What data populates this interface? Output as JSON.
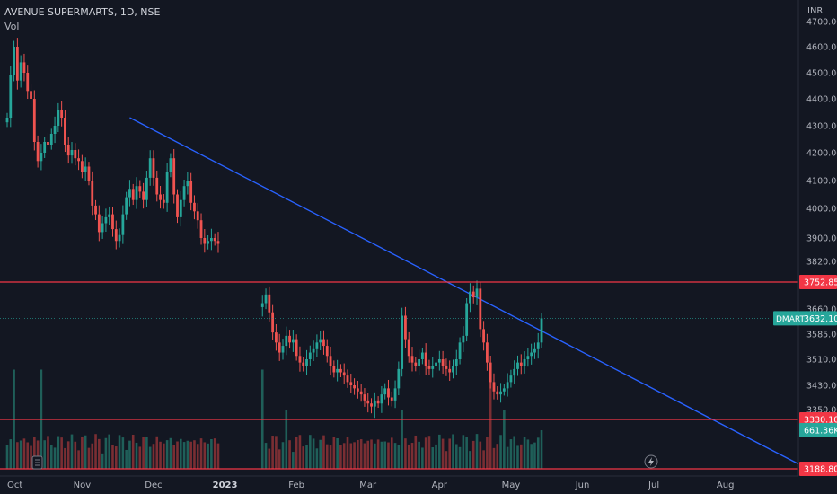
{
  "header": {
    "symbol_line": "AVENUE SUPERMARTS, 1D, NSE",
    "indicator": "Vol"
  },
  "colors": {
    "background": "#131722",
    "up": "#26a69a",
    "down": "#ef5350",
    "up_vol": "#1f5f59",
    "down_vol": "#7a2e33",
    "trendline": "#2962ff",
    "hline": "#f23645",
    "axis_text": "#b2b5be",
    "grid": "#1e222d"
  },
  "chart_data": {
    "type": "candlestick",
    "currency_label": "INR",
    "y_ticks": [
      3188.8,
      3270.0,
      3350.0,
      3430.0,
      3510.0,
      3585.0,
      3660.0,
      3752.85,
      3820.0,
      3900.0,
      4000.0,
      4100.0,
      4200.0,
      4300.0,
      4400.0,
      4500.0,
      4600.0,
      4700.0
    ],
    "y_tick_labels": [
      "",
      "",
      "3350.00",
      "3430.00",
      "3510.00",
      "3585.00",
      "3660.00",
      "",
      "3820.00",
      "3900.00",
      "4000.00",
      "4100.00",
      "4200.00",
      "4300.00",
      "4400.00",
      "4500.00",
      "4600.00",
      "4700.00"
    ],
    "x_labels": [
      "Oct",
      "Nov",
      "Dec",
      "2023",
      "Feb",
      "Mar",
      "Apr",
      "May",
      "Jun",
      "Jul",
      "Aug"
    ],
    "price_tags": [
      {
        "label": "3752.85",
        "value": 3752.85,
        "kind": "hline"
      },
      {
        "label": "3330.10",
        "value": 3330.1,
        "kind": "hline"
      },
      {
        "label": "3188.80",
        "value": 3188.8,
        "kind": "hline"
      },
      {
        "label": "3632.10",
        "value": 3632.1,
        "kind": "last"
      },
      {
        "label": "661.36K",
        "value": 661360,
        "kind": "volume"
      }
    ],
    "last_symbol": "DMART",
    "last_price": 3632.1,
    "trendline": {
      "from": [
        36,
        4330
      ],
      "to": [
        186,
        3440
      ]
    },
    "horizontal_lines": [
      3752.85,
      3330.1,
      3188.8
    ],
    "segments": [
      {
        "start": 0,
        "values": [
          4330,
          4490,
          4600,
          4470,
          4540,
          4500,
          4430,
          4400,
          4240,
          4170,
          4200,
          4240,
          4230,
          4270,
          4300,
          4360,
          4330,
          4230,
          4190,
          4210,
          4180,
          4170,
          4130,
          4150,
          4100,
          4010,
          3980,
          3920,
          3950,
          3970,
          3980,
          3930,
          3890,
          3910,
          3980,
          4040,
          4070,
          4030,
          4080,
          4060,
          4030,
          4110,
          4180,
          4110,
          4050,
          4030,
          4020,
          4130,
          4180,
          4050,
          3970,
          4030,
          4080,
          4100,
          4020,
          3990,
          3960,
          3900,
          3880,
          3890,
          3900,
          3890,
          3880
        ]
      },
      {
        "start": 75,
        "values": [
          3680,
          3710,
          3650,
          3590,
          3560,
          3530,
          3550,
          3580,
          3560,
          3570,
          3520,
          3500,
          3490,
          3510,
          3530,
          3540,
          3560,
          3570,
          3550,
          3520,
          3490,
          3470,
          3480,
          3470,
          3460,
          3440,
          3430,
          3420,
          3410,
          3400,
          3380,
          3370,
          3360,
          3380,
          3370,
          3400,
          3420,
          3390,
          3380,
          3420,
          3480,
          3640,
          3570,
          3520,
          3500,
          3490,
          3510,
          3530,
          3490,
          3480,
          3490,
          3500,
          3510,
          3490,
          3480,
          3470,
          3490,
          3510,
          3560,
          3580,
          3680,
          3720,
          3700,
          3730,
          3600,
          3560,
          3500,
          3440,
          3410,
          3400,
          3410,
          3420,
          3440,
          3460,
          3480,
          3500,
          3490,
          3510,
          3520,
          3530,
          3540,
          3560,
          3632.1
        ]
      }
    ],
    "volume": {
      "max": 2000000,
      "last": 661360
    },
    "x_tick_days": [
      0,
      22,
      43,
      64,
      85,
      106,
      127,
      148,
      169,
      190,
      211
    ],
    "grid": false,
    "legend": "none"
  }
}
